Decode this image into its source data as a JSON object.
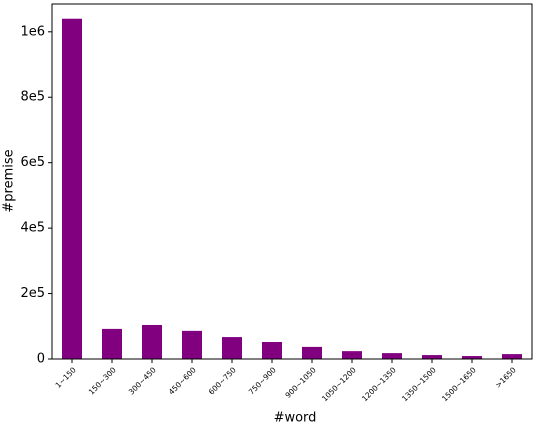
{
  "chart_data": {
    "type": "bar",
    "xlabel": "#word",
    "ylabel": "#premise",
    "categories": [
      "1~150",
      "150~300",
      "300~450",
      "450~600",
      "600~750",
      "750~900",
      "900~1050",
      "1050~1200",
      "1200~1350",
      "1350~1500",
      "1500~1650",
      ">1650"
    ],
    "values": [
      1040000,
      92000,
      104000,
      86000,
      67000,
      52000,
      37000,
      24000,
      18000,
      12000,
      9000,
      15000
    ],
    "color": "#800080",
    "ylim": [
      0,
      1085000
    ],
    "yticks": [
      0,
      {
        "value": 200000,
        "label": "2e5"
      },
      {
        "value": 400000,
        "label": "4e5"
      },
      {
        "value": 600000,
        "label": "6e5"
      },
      {
        "value": 800000,
        "label": "8e5"
      },
      {
        "value": 1000000,
        "label": "1e6"
      }
    ]
  }
}
